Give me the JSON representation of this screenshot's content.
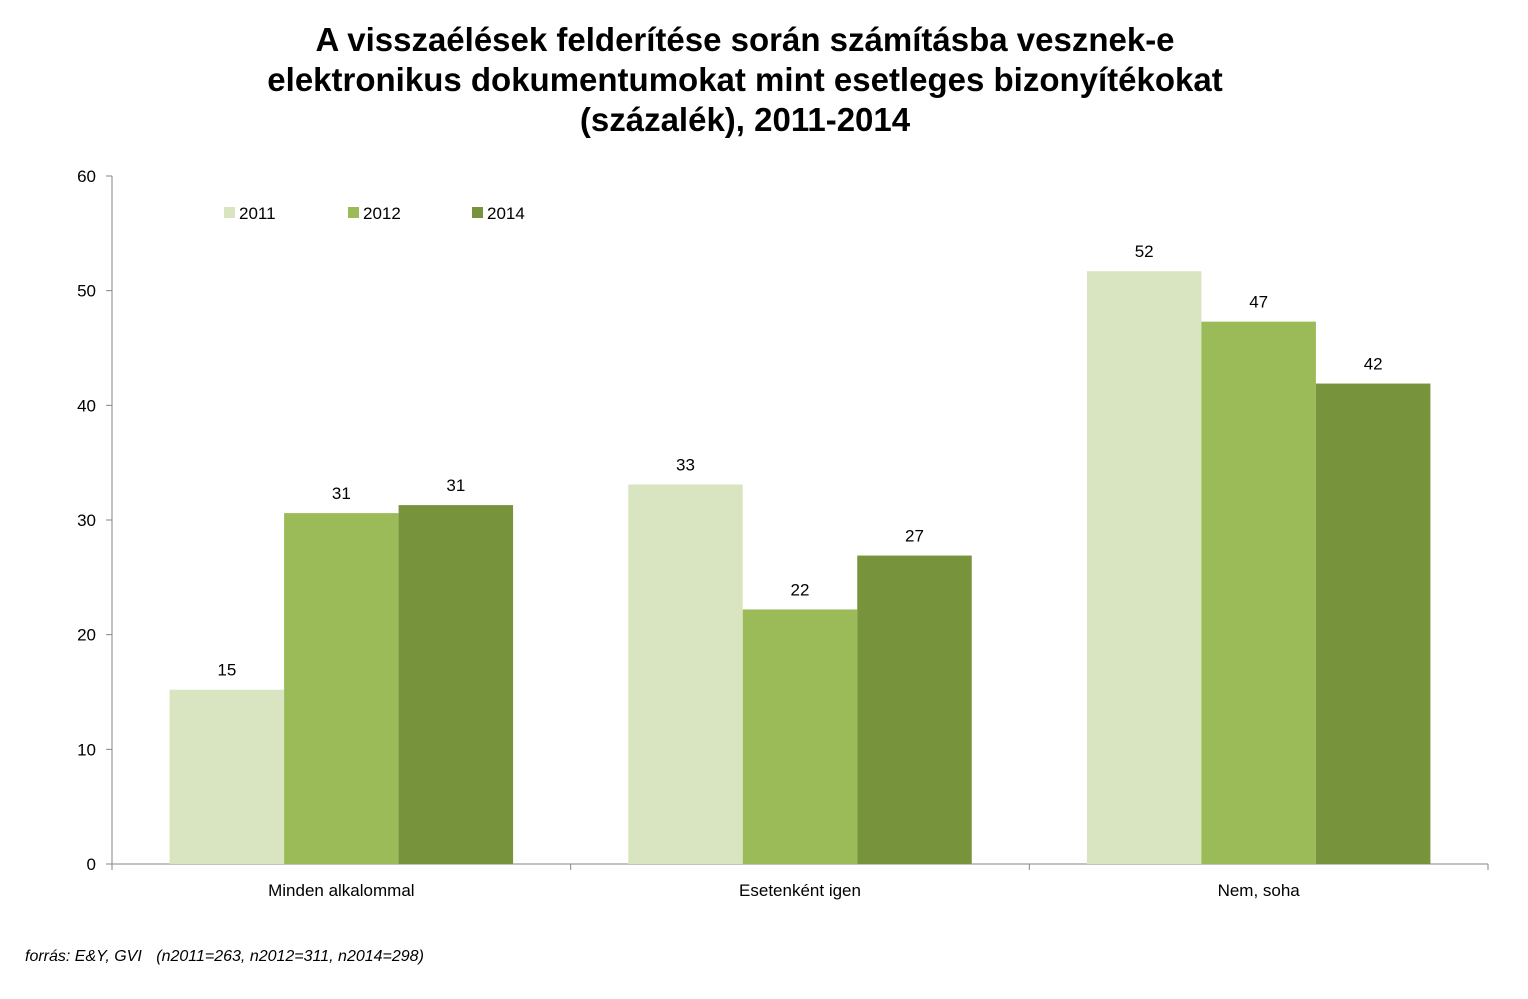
{
  "chart_data": {
    "type": "bar",
    "title": [
      "A visszaélések felderítése során számításba vesznek-e",
      "elektronikus dokumentumokat mint esetleges bizonyítékokat",
      "(százalék), 2011-2014"
    ],
    "categories": [
      "Minden alkalommal",
      "Esetenként igen",
      "Nem, soha"
    ],
    "series": [
      {
        "name": "2011",
        "color": "#d9e5c1",
        "values": [
          15.2,
          33.1,
          51.7
        ],
        "labels": [
          "15",
          "33",
          "52"
        ]
      },
      {
        "name": "2012",
        "color": "#9bbb59",
        "values": [
          30.6,
          22.2,
          47.3
        ],
        "labels": [
          "31",
          "22",
          "47"
        ]
      },
      {
        "name": "2014",
        "color": "#77933c",
        "values": [
          31.3,
          26.9,
          41.9
        ],
        "labels": [
          "31",
          "27",
          "42"
        ]
      }
    ],
    "ylim": [
      0,
      60
    ],
    "yticks": [
      0,
      10,
      20,
      30,
      40,
      50,
      60
    ],
    "legend": "top-left",
    "grid": false
  },
  "source": {
    "label": "forrás: E&Y, GVI",
    "sample": "(n2011=263, n2012=311, n2014=298)"
  }
}
